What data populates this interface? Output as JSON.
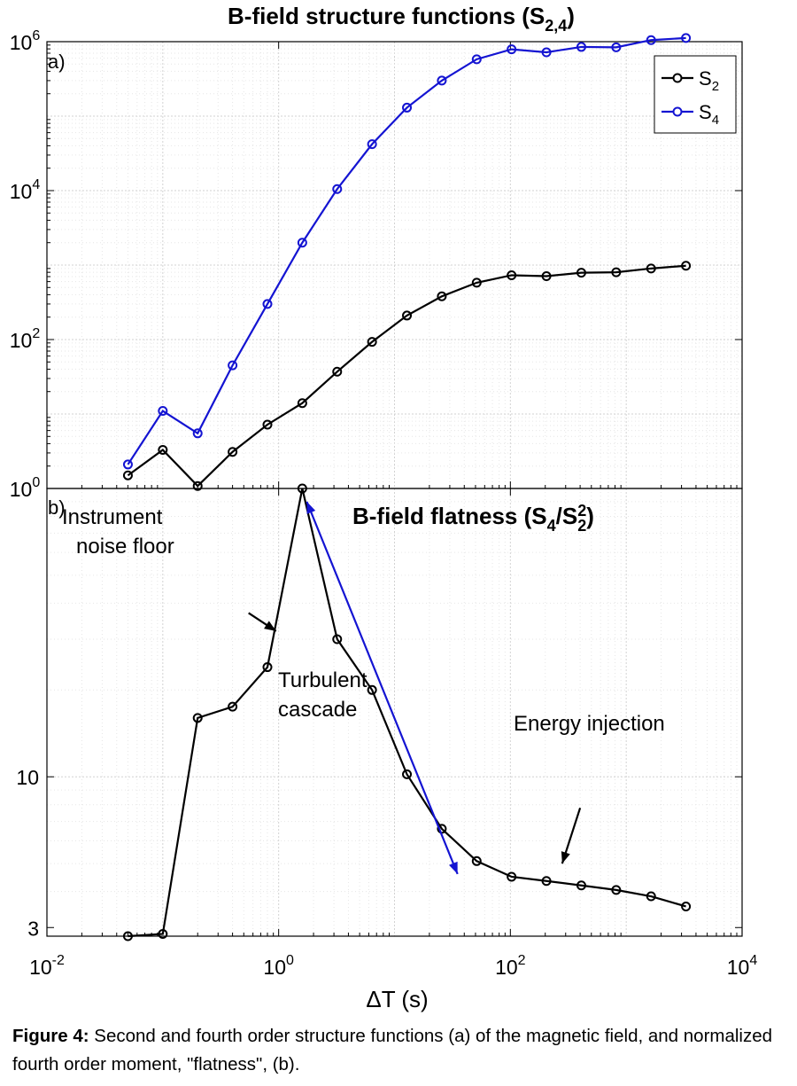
{
  "chart_data": [
    {
      "panel": "a)",
      "type": "line",
      "title": "B-field structure functions (S",
      "title_sub": "2,4",
      "title_close": ")",
      "x_scale": "log",
      "y_scale": "log",
      "xlim": [
        0.01,
        10000
      ],
      "ylim": [
        1,
        1000000
      ],
      "yticks": [
        {
          "base": "10",
          "exp": "0",
          "value": 1
        },
        {
          "base": "10",
          "exp": "2",
          "value": 100
        },
        {
          "base": "10",
          "exp": "4",
          "value": 10000
        },
        {
          "base": "10",
          "exp": "6",
          "value": 1000000
        }
      ],
      "grid": true,
      "legend_position": "top-right",
      "series": [
        {
          "name": "S",
          "name_sub": "2",
          "color": "#000000",
          "points": [
            {
              "x": 0.05,
              "y": 1.5
            },
            {
              "x": 0.1,
              "y": 3.3
            },
            {
              "x": 0.2,
              "y": 1.08
            },
            {
              "x": 0.4,
              "y": 3.1
            },
            {
              "x": 0.8,
              "y": 7.2
            },
            {
              "x": 1.6,
              "y": 14
            },
            {
              "x": 3.2,
              "y": 37
            },
            {
              "x": 6.4,
              "y": 93
            },
            {
              "x": 12.8,
              "y": 210
            },
            {
              "x": 25.6,
              "y": 380
            },
            {
              "x": 51.2,
              "y": 580
            },
            {
              "x": 102.4,
              "y": 730
            },
            {
              "x": 204.8,
              "y": 710
            },
            {
              "x": 409.6,
              "y": 790
            },
            {
              "x": 819.2,
              "y": 800
            },
            {
              "x": 1638.4,
              "y": 900
            },
            {
              "x": 3276.8,
              "y": 980
            }
          ]
        },
        {
          "name": "S",
          "name_sub": "4",
          "color": "#1414d2",
          "points": [
            {
              "x": 0.05,
              "y": 2.1
            },
            {
              "x": 0.1,
              "y": 11
            },
            {
              "x": 0.2,
              "y": 5.5
            },
            {
              "x": 0.4,
              "y": 45
            },
            {
              "x": 0.8,
              "y": 300
            },
            {
              "x": 1.6,
              "y": 2000
            },
            {
              "x": 3.2,
              "y": 10500
            },
            {
              "x": 6.4,
              "y": 42000
            },
            {
              "x": 12.8,
              "y": 130000
            },
            {
              "x": 25.6,
              "y": 300000
            },
            {
              "x": 51.2,
              "y": 580000
            },
            {
              "x": 102.4,
              "y": 790000
            },
            {
              "x": 204.8,
              "y": 720000
            },
            {
              "x": 409.6,
              "y": 850000
            },
            {
              "x": 819.2,
              "y": 840000
            },
            {
              "x": 1638.4,
              "y": 1050000
            },
            {
              "x": 3276.8,
              "y": 1120000
            }
          ]
        }
      ]
    },
    {
      "panel": "b)",
      "type": "line",
      "title": "B-field flatness (S",
      "title_parts": [
        "4",
        "/S",
        "2",
        "2",
        ")"
      ],
      "x_scale": "log",
      "y_scale": "log",
      "xlim": [
        0.01,
        10000
      ],
      "ylim": [
        2.8,
        100
      ],
      "xticks": [
        {
          "base": "10",
          "exp": "-2",
          "value": 0.01
        },
        {
          "base": "10",
          "exp": "0",
          "value": 1
        },
        {
          "base": "10",
          "exp": "2",
          "value": 100
        },
        {
          "base": "10",
          "exp": "4",
          "value": 10000
        }
      ],
      "yticks": [
        {
          "label": "3",
          "value": 3
        },
        {
          "label": "10",
          "value": 10
        }
      ],
      "xlabel": "ΔT (s)",
      "grid": true,
      "series": [
        {
          "name": "flatness",
          "color": "#000000",
          "points": [
            {
              "x": 0.05,
              "y": 2.8
            },
            {
              "x": 0.1,
              "y": 2.85
            },
            {
              "x": 0.2,
              "y": 16
            },
            {
              "x": 0.4,
              "y": 17.5
            },
            {
              "x": 0.8,
              "y": 24
            },
            {
              "x": 1.6,
              "y": 100
            },
            {
              "x": 3.2,
              "y": 30
            },
            {
              "x": 6.4,
              "y": 20
            },
            {
              "x": 12.8,
              "y": 10.2
            },
            {
              "x": 25.6,
              "y": 6.6
            },
            {
              "x": 51.2,
              "y": 5.1
            },
            {
              "x": 102.4,
              "y": 4.5
            },
            {
              "x": 204.8,
              "y": 4.35
            },
            {
              "x": 409.6,
              "y": 4.2
            },
            {
              "x": 819.2,
              "y": 4.05
            },
            {
              "x": 1638.4,
              "y": 3.85
            },
            {
              "x": 3276.8,
              "y": 3.55
            }
          ]
        }
      ],
      "annotations": [
        {
          "text_lines": [
            "Instrument",
            "noise floor"
          ],
          "arrow_from": {
            "x": 0.55,
            "y": 37
          },
          "arrow_to": {
            "x": 0.95,
            "y": 32
          },
          "arrow_color": "#000000"
        },
        {
          "text_lines": [
            "Turbulent",
            "cascade"
          ],
          "arrow_from": {
            "x": 1.75,
            "y": 90
          },
          "arrow_to": {
            "x": 35,
            "y": 4.6
          },
          "arrow_color": "#1414d2",
          "double_headed": true
        },
        {
          "text_lines": [
            "Energy injection"
          ],
          "arrow_from": {
            "x": 400,
            "y": 7.8
          },
          "arrow_to": {
            "x": 280,
            "y": 5.0
          },
          "arrow_color": "#000000"
        }
      ]
    }
  ],
  "caption": {
    "label": "Figure 4:",
    "text": " Second and fourth order structure functions (a) of the magnetic field, and normalized fourth order moment, \"flatness\", (b)."
  }
}
